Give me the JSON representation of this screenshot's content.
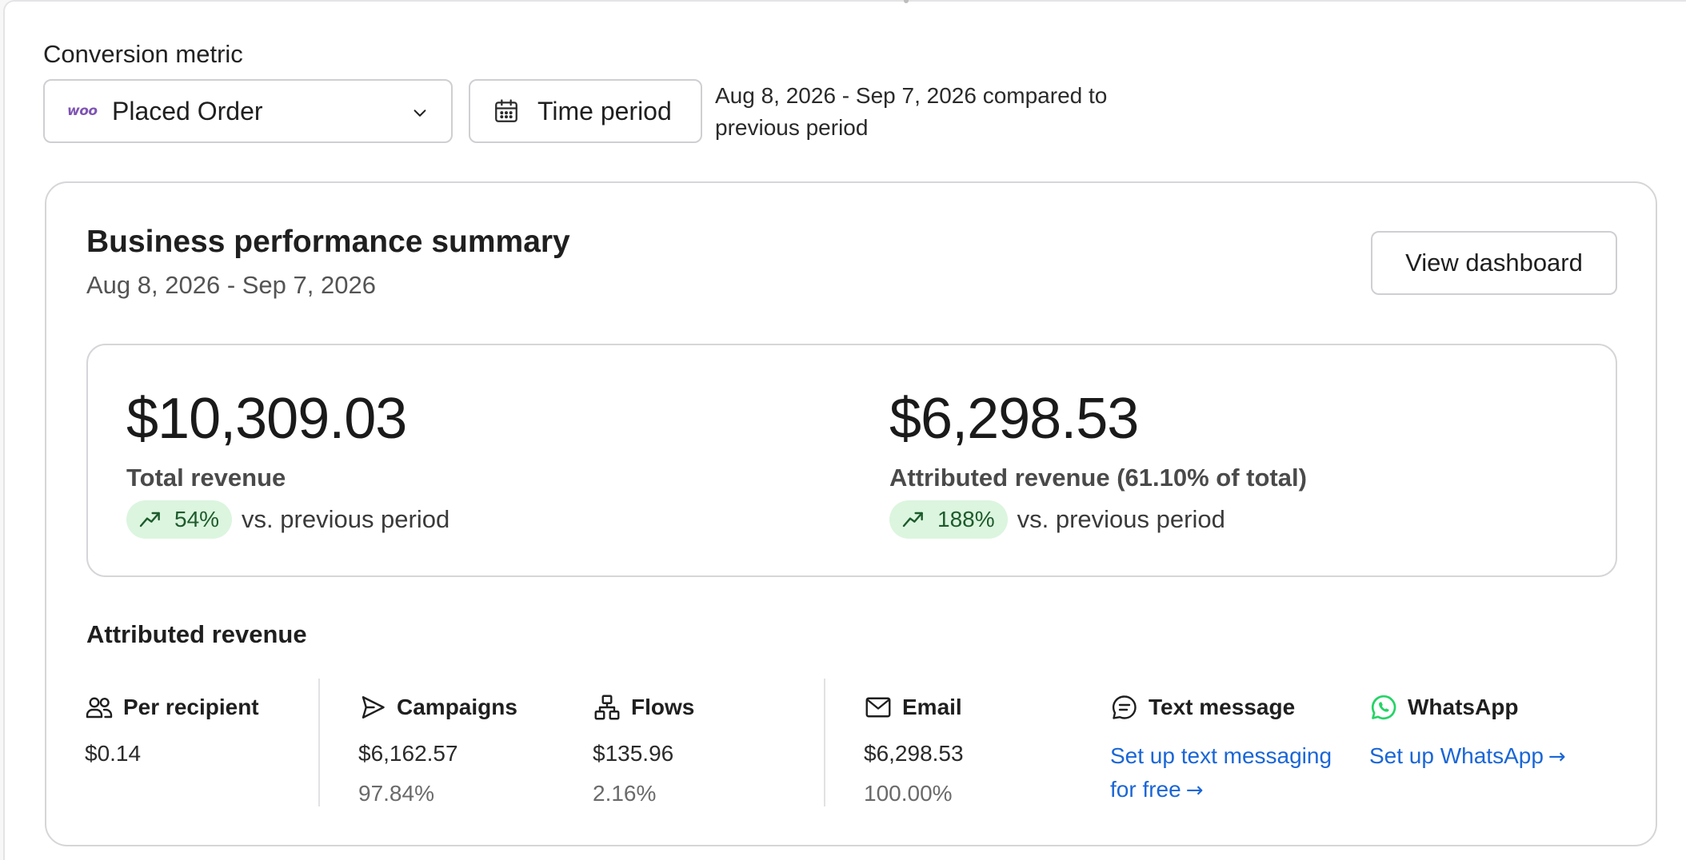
{
  "filters": {
    "conversion_metric_label": "Conversion metric",
    "metric_logo_text": "woo",
    "metric_value": "Placed Order",
    "time_period_label": "Time period",
    "period_description": "Aug 8, 2026 - Sep 7, 2026 compared to previous period"
  },
  "summary": {
    "title": "Business performance summary",
    "date_range": "Aug 8, 2026 - Sep 7, 2026",
    "view_dashboard_label": "View dashboard",
    "total": {
      "amount": "$10,309.03",
      "label": "Total revenue",
      "change": "54%",
      "comparison": "vs. previous period"
    },
    "attributed": {
      "amount": "$6,298.53",
      "label": "Attributed revenue (61.10% of total)",
      "change": "188%",
      "comparison": "vs. previous period"
    }
  },
  "attributed_revenue": {
    "title": "Attributed revenue",
    "per_recipient": {
      "label": "Per recipient",
      "value": "$0.14"
    },
    "campaigns": {
      "label": "Campaigns",
      "value": "$6,162.57",
      "percent": "97.84%"
    },
    "flows": {
      "label": "Flows",
      "value": "$135.96",
      "percent": "2.16%"
    },
    "email": {
      "label": "Email",
      "value": "$6,298.53",
      "percent": "100.00%"
    },
    "text_message": {
      "label": "Text message",
      "link": "Set up text messaging for free"
    },
    "whatsapp": {
      "label": "WhatsApp",
      "link": "Set up WhatsApp"
    }
  },
  "colors": {
    "link": "#1a66d6",
    "trend_bg": "#dcf5df",
    "trend_fg": "#1d5b2c",
    "woo_purple": "#7f54b3",
    "whatsapp_green": "#25d366"
  },
  "icons": [
    "woo-logo",
    "chevron-down-icon",
    "calendar-icon",
    "trend-up-icon",
    "people-icon",
    "send-icon",
    "flows-icon",
    "mail-icon",
    "chat-icon",
    "whatsapp-icon",
    "arrow-right-icon"
  ]
}
